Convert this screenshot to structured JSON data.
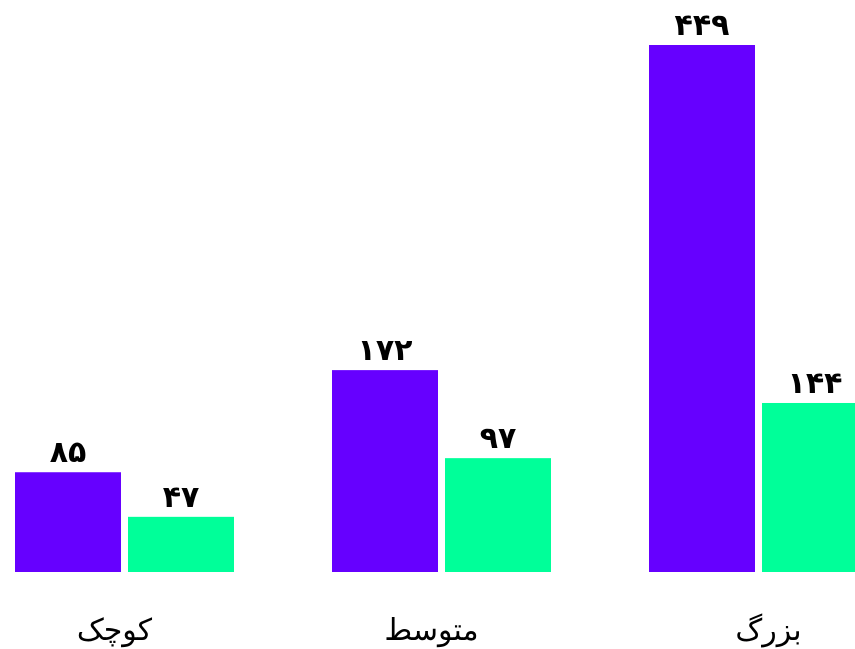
{
  "chart_data": {
    "type": "bar",
    "categories": [
      "کوچک",
      "متوسط",
      "بزرگ"
    ],
    "series": [
      {
        "color": "#6600ff",
        "values": [
          85,
          172,
          449
        ],
        "value_labels": [
          "۸۵",
          "۱۷۲",
          "۴۴۹"
        ]
      },
      {
        "color": "#00ff99",
        "values": [
          47,
          97,
          144
        ],
        "value_labels": [
          "۴۷",
          "۹۷",
          "۱۴۴"
        ]
      }
    ]
  }
}
